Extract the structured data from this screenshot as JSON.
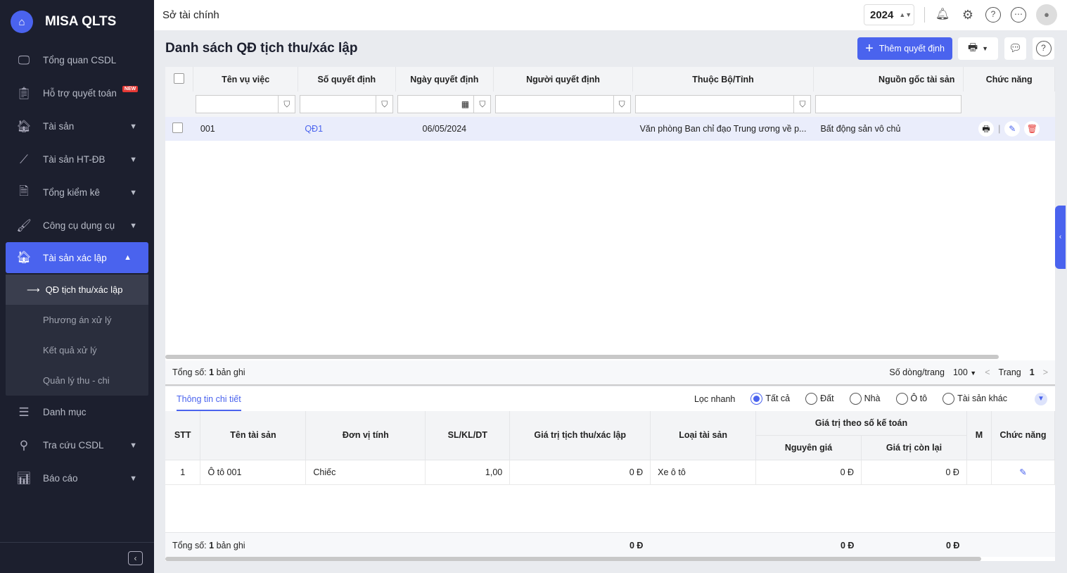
{
  "app": {
    "name": "MISA QLTS"
  },
  "sidebar": {
    "items": [
      {
        "label": "Tổng quan CSDL",
        "icon": "monitor-chart-icon"
      },
      {
        "label": "Hỗ trợ quyết toán",
        "icon": "clipboard-check-icon",
        "badge": "NEW"
      },
      {
        "label": "Tài sản",
        "icon": "house-car-icon",
        "chevron": true
      },
      {
        "label": "Tài sản HT-ĐB",
        "icon": "road-icon",
        "chevron": true
      },
      {
        "label": "Tổng kiểm kê",
        "icon": "document-check-icon",
        "chevron": true
      },
      {
        "label": "Công cụ dụng cụ",
        "icon": "paint-roller-icon",
        "chevron": true
      },
      {
        "label": "Tài sản xác lập",
        "icon": "house-car-icon",
        "expanded": true
      },
      {
        "label": "Danh mục",
        "icon": "list-icon"
      },
      {
        "label": "Tra cứu CSDL",
        "icon": "search-icon",
        "chevron": true
      },
      {
        "label": "Báo cáo",
        "icon": "bar-chart-icon",
        "chevron": true
      }
    ],
    "sub_items": [
      "QĐ tịch thu/xác lập",
      "Phương án xử lý",
      "Kết quả xử lý",
      "Quản lý thu - chi"
    ]
  },
  "topbar": {
    "title": "Sở tài chính",
    "year": "2024"
  },
  "page": {
    "title": "Danh sách QĐ tịch thu/xác lập",
    "add_button": "Thêm quyết định"
  },
  "grid": {
    "columns": [
      "Tên vụ việc",
      "Số quyết định",
      "Ngày quyết định",
      "Người quyết định",
      "Thuộc Bộ/Tỉnh",
      "Nguồn gốc tài sản",
      "Chức năng"
    ],
    "rows": [
      {
        "ten": "001",
        "so": "QĐ1",
        "ngay": "06/05/2024",
        "nguoi": "",
        "thuoc": "Văn phòng Ban chỉ đạo Trung ương về p...",
        "nguon": "Bất động sản vô chủ"
      }
    ],
    "footer": {
      "total_label": "Tổng số:",
      "total": "1",
      "unit": "bản ghi",
      "rows_per_page_label": "Số dòng/trang",
      "rows_per_page": "100",
      "page_label": "Trang",
      "page": "1"
    }
  },
  "detail": {
    "tab": "Thông tin chi tiết",
    "quick_filter_label": "Lọc nhanh",
    "filters": [
      {
        "label": "Tất cả",
        "selected": true
      },
      {
        "label": "Đất"
      },
      {
        "label": "Nhà"
      },
      {
        "label": "Ô tô"
      },
      {
        "label": "Tài sản khác"
      }
    ],
    "columns": {
      "stt": "STT",
      "ten": "Tên tài sản",
      "dvt": "Đơn vị tính",
      "sl": "SL/KL/DT",
      "gt": "Giá trị tịch thu/xác lập",
      "loai": "Loại tài sản",
      "group": "Giá trị theo số kế toán",
      "nguyen": "Nguyên giá",
      "conlai": "Giá trị còn lại",
      "m": "M",
      "chucnang": "Chức năng"
    },
    "rows": [
      {
        "stt": "1",
        "ten": "Ô tô 001",
        "dvt": "Chiếc",
        "sl": "1,00",
        "gt": "0 Đ",
        "loai": "Xe ô tô",
        "nguyen": "0 Đ",
        "conlai": "0 Đ"
      }
    ],
    "footer": {
      "total_label": "Tổng số:",
      "total": "1",
      "unit": "bản ghi",
      "gt": "0 Đ",
      "nguyen": "0 Đ",
      "conlai": "0 Đ"
    }
  },
  "colors": {
    "accent": "#4a63ee",
    "sidebar": "#1c1f2e",
    "delete": "#e53935"
  }
}
